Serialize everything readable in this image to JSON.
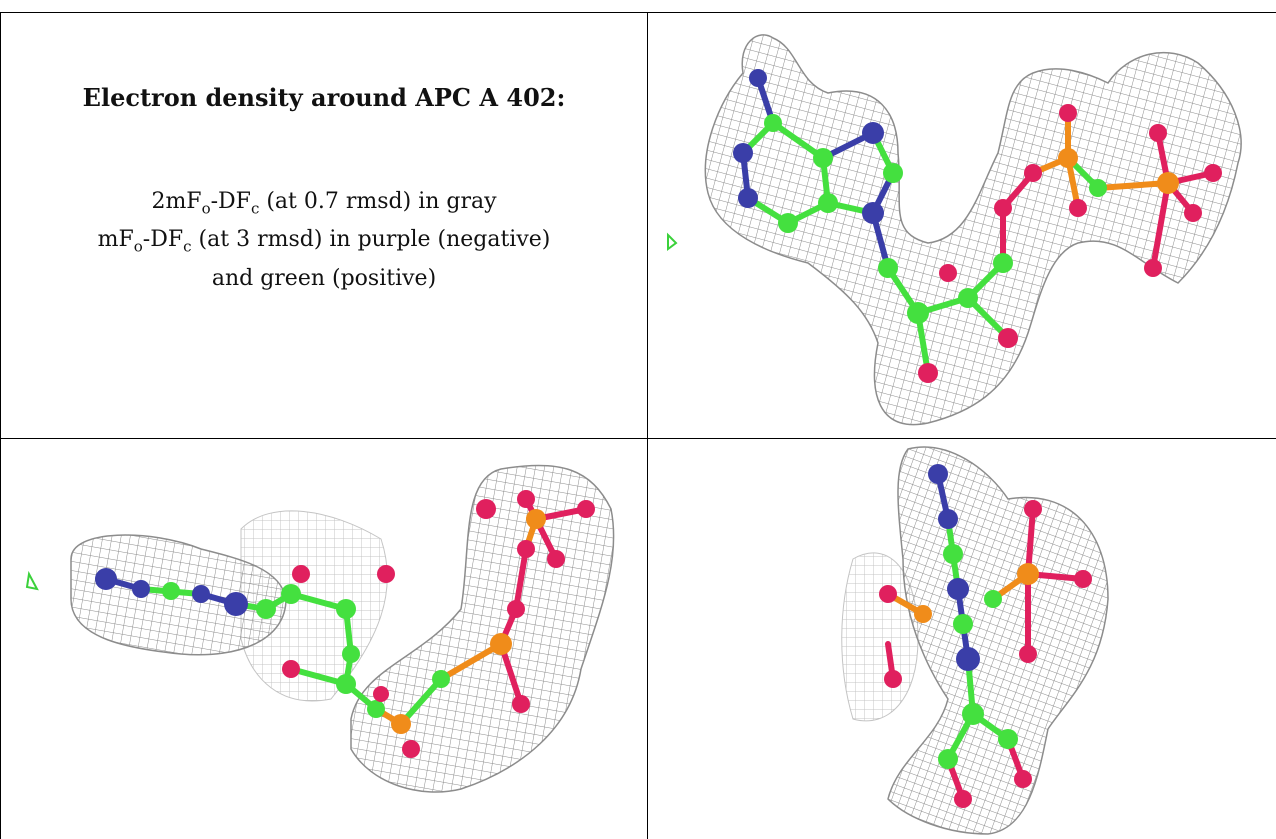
{
  "caption": {
    "title": "Electron density around APC A 402:",
    "line1": {
      "prefix": "2mF",
      "sub1": "o",
      "mid": "-DF",
      "sub2": "c",
      "suffix": " (at 0.7 rmsd) in gray"
    },
    "line2": {
      "prefix": "mF",
      "sub1": "o",
      "mid": "-DF",
      "sub2": "c",
      "suffix": " (at 3 rmsd) in purple (negative)"
    },
    "line3": "and green (positive)"
  },
  "colors": {
    "mesh": "#8c8c8c",
    "carbon": "#44e03f",
    "nitrogen": "#3a3ea8",
    "oxygen": "#e0205e",
    "phosphorus": "#f08c1a",
    "positive_density": "#3bd13b",
    "grid_line": "#000000"
  },
  "panels": [
    {
      "id": "view-1",
      "content": "ligand-density-render"
    },
    {
      "id": "view-2",
      "content": "ligand-density-render"
    },
    {
      "id": "view-3",
      "content": "ligand-density-render"
    }
  ]
}
